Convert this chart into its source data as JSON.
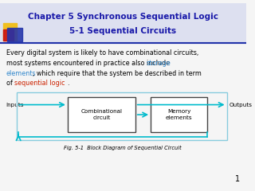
{
  "title_line1": "Chapter 5 Synchronous Sequential Logic",
  "title_line2": "5-1 Sequential Circuits",
  "title_color": "#1a1aaa",
  "title_fontsize": 7.5,
  "body_color": "#000000",
  "storage_color": "#3388cc",
  "seq_color": "#cc2200",
  "body_fontsize": 5.8,
  "fig_caption": "Fig. 5-1  Block Diagram of Sequential Circuit",
  "caption_fontsize": 4.8,
  "background_color": "#f5f5f5",
  "header_bg": "#dde0f0",
  "slide_num": "1",
  "decor_yellow": "#f0c020",
  "decor_red": "#cc1111",
  "decor_blue": "#2233aa",
  "sep_line_color": "#2233aa",
  "arrow_color": "#00bbcc",
  "box_edge_color": "#444444",
  "box_fill": "#ffffff",
  "outer_rect_color": "#88ccdd",
  "label_fontsize": 5.2
}
